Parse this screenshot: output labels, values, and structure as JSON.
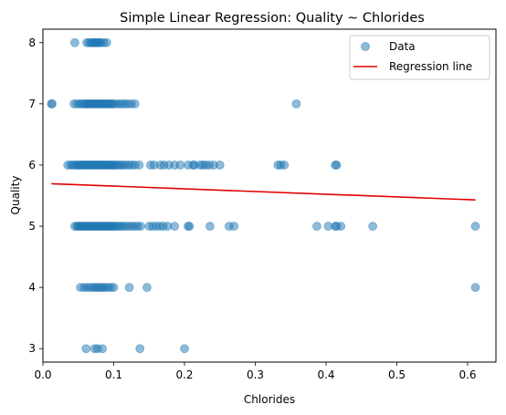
{
  "chart_data": {
    "type": "scatter",
    "title": "Simple Linear Regression: Quality ~ Chlorides",
    "xlabel": "Chlorides",
    "ylabel": "Quality",
    "xlim": [
      -0.0,
      0.64
    ],
    "ylim": [
      2.78,
      8.22
    ],
    "xticks": [
      0.0,
      0.1,
      0.2,
      0.3,
      0.4,
      0.5,
      0.6
    ],
    "xtick_labels": [
      "0.0",
      "0.1",
      "0.2",
      "0.3",
      "0.4",
      "0.5",
      "0.6"
    ],
    "yticks": [
      3,
      4,
      5,
      6,
      7,
      8
    ],
    "ytick_labels": [
      "3",
      "4",
      "5",
      "6",
      "7",
      "8"
    ],
    "grid": false,
    "legend_position": "top-right",
    "series": [
      {
        "name": "Data",
        "kind": "scatter",
        "color": "#1f77b4",
        "alpha": 0.5,
        "points": [
          [
            0.045,
            8
          ],
          [
            0.062,
            8
          ],
          [
            0.065,
            8
          ],
          [
            0.068,
            8
          ],
          [
            0.07,
            8
          ],
          [
            0.072,
            8
          ],
          [
            0.074,
            8
          ],
          [
            0.076,
            8
          ],
          [
            0.078,
            8
          ],
          [
            0.08,
            8
          ],
          [
            0.082,
            8
          ],
          [
            0.086,
            8
          ],
          [
            0.09,
            8
          ],
          [
            0.012,
            7
          ],
          [
            0.013,
            7
          ],
          [
            0.044,
            7
          ],
          [
            0.048,
            7
          ],
          [
            0.052,
            7
          ],
          [
            0.055,
            7
          ],
          [
            0.058,
            7
          ],
          [
            0.06,
            7
          ],
          [
            0.062,
            7
          ],
          [
            0.064,
            7
          ],
          [
            0.066,
            7
          ],
          [
            0.068,
            7
          ],
          [
            0.07,
            7
          ],
          [
            0.072,
            7
          ],
          [
            0.074,
            7
          ],
          [
            0.076,
            7
          ],
          [
            0.078,
            7
          ],
          [
            0.08,
            7
          ],
          [
            0.082,
            7
          ],
          [
            0.084,
            7
          ],
          [
            0.086,
            7
          ],
          [
            0.088,
            7
          ],
          [
            0.09,
            7
          ],
          [
            0.092,
            7
          ],
          [
            0.094,
            7
          ],
          [
            0.096,
            7
          ],
          [
            0.098,
            7
          ],
          [
            0.1,
            7
          ],
          [
            0.104,
            7
          ],
          [
            0.108,
            7
          ],
          [
            0.112,
            7
          ],
          [
            0.116,
            7
          ],
          [
            0.12,
            7
          ],
          [
            0.125,
            7
          ],
          [
            0.13,
            7
          ],
          [
            0.358,
            7
          ],
          [
            0.035,
            6
          ],
          [
            0.039,
            6
          ],
          [
            0.042,
            6
          ],
          [
            0.045,
            6
          ],
          [
            0.048,
            6
          ],
          [
            0.05,
            6
          ],
          [
            0.052,
            6
          ],
          [
            0.054,
            6
          ],
          [
            0.056,
            6
          ],
          [
            0.058,
            6
          ],
          [
            0.06,
            6
          ],
          [
            0.062,
            6
          ],
          [
            0.064,
            6
          ],
          [
            0.066,
            6
          ],
          [
            0.068,
            6
          ],
          [
            0.07,
            6
          ],
          [
            0.072,
            6
          ],
          [
            0.074,
            6
          ],
          [
            0.076,
            6
          ],
          [
            0.078,
            6
          ],
          [
            0.08,
            6
          ],
          [
            0.082,
            6
          ],
          [
            0.084,
            6
          ],
          [
            0.086,
            6
          ],
          [
            0.088,
            6
          ],
          [
            0.09,
            6
          ],
          [
            0.092,
            6
          ],
          [
            0.094,
            6
          ],
          [
            0.096,
            6
          ],
          [
            0.098,
            6
          ],
          [
            0.1,
            6
          ],
          [
            0.102,
            6
          ],
          [
            0.105,
            6
          ],
          [
            0.108,
            6
          ],
          [
            0.111,
            6
          ],
          [
            0.114,
            6
          ],
          [
            0.118,
            6
          ],
          [
            0.122,
            6
          ],
          [
            0.126,
            6
          ],
          [
            0.13,
            6
          ],
          [
            0.136,
            6
          ],
          [
            0.152,
            6
          ],
          [
            0.157,
            6
          ],
          [
            0.166,
            6
          ],
          [
            0.171,
            6
          ],
          [
            0.178,
            6
          ],
          [
            0.186,
            6
          ],
          [
            0.194,
            6
          ],
          [
            0.205,
            6
          ],
          [
            0.212,
            6
          ],
          [
            0.214,
            6
          ],
          [
            0.222,
            6
          ],
          [
            0.226,
            6
          ],
          [
            0.23,
            6
          ],
          [
            0.235,
            6
          ],
          [
            0.241,
            6
          ],
          [
            0.25,
            6
          ],
          [
            0.332,
            6
          ],
          [
            0.336,
            6
          ],
          [
            0.341,
            6
          ],
          [
            0.413,
            6
          ],
          [
            0.415,
            6
          ],
          [
            0.045,
            5
          ],
          [
            0.048,
            5
          ],
          [
            0.05,
            5
          ],
          [
            0.052,
            5
          ],
          [
            0.054,
            5
          ],
          [
            0.056,
            5
          ],
          [
            0.058,
            5
          ],
          [
            0.06,
            5
          ],
          [
            0.062,
            5
          ],
          [
            0.064,
            5
          ],
          [
            0.066,
            5
          ],
          [
            0.068,
            5
          ],
          [
            0.07,
            5
          ],
          [
            0.072,
            5
          ],
          [
            0.074,
            5
          ],
          [
            0.076,
            5
          ],
          [
            0.078,
            5
          ],
          [
            0.08,
            5
          ],
          [
            0.082,
            5
          ],
          [
            0.084,
            5
          ],
          [
            0.086,
            5
          ],
          [
            0.088,
            5
          ],
          [
            0.09,
            5
          ],
          [
            0.092,
            5
          ],
          [
            0.094,
            5
          ],
          [
            0.096,
            5
          ],
          [
            0.098,
            5
          ],
          [
            0.1,
            5
          ],
          [
            0.102,
            5
          ],
          [
            0.105,
            5
          ],
          [
            0.108,
            5
          ],
          [
            0.111,
            5
          ],
          [
            0.114,
            5
          ],
          [
            0.118,
            5
          ],
          [
            0.122,
            5
          ],
          [
            0.126,
            5
          ],
          [
            0.13,
            5
          ],
          [
            0.134,
            5
          ],
          [
            0.138,
            5
          ],
          [
            0.15,
            5
          ],
          [
            0.155,
            5
          ],
          [
            0.16,
            5
          ],
          [
            0.165,
            5
          ],
          [
            0.17,
            5
          ],
          [
            0.176,
            5
          ],
          [
            0.186,
            5
          ],
          [
            0.205,
            5
          ],
          [
            0.207,
            5
          ],
          [
            0.236,
            5
          ],
          [
            0.263,
            5
          ],
          [
            0.27,
            5
          ],
          [
            0.387,
            5
          ],
          [
            0.403,
            5
          ],
          [
            0.413,
            5
          ],
          [
            0.415,
            5
          ],
          [
            0.421,
            5
          ],
          [
            0.466,
            5
          ],
          [
            0.611,
            5
          ],
          [
            0.053,
            4
          ],
          [
            0.058,
            4
          ],
          [
            0.062,
            4
          ],
          [
            0.066,
            4
          ],
          [
            0.07,
            4
          ],
          [
            0.073,
            4
          ],
          [
            0.076,
            4
          ],
          [
            0.079,
            4
          ],
          [
            0.082,
            4
          ],
          [
            0.085,
            4
          ],
          [
            0.088,
            4
          ],
          [
            0.092,
            4
          ],
          [
            0.096,
            4
          ],
          [
            0.1,
            4
          ],
          [
            0.122,
            4
          ],
          [
            0.147,
            4
          ],
          [
            0.611,
            4
          ],
          [
            0.061,
            3
          ],
          [
            0.073,
            3
          ],
          [
            0.077,
            3
          ],
          [
            0.084,
            3
          ],
          [
            0.137,
            3
          ],
          [
            0.2,
            3
          ]
        ]
      },
      {
        "name": "Regression line",
        "kind": "line",
        "color": "#e00000",
        "x": [
          0.012,
          0.611
        ],
        "y": [
          5.695,
          5.43
        ]
      }
    ]
  }
}
